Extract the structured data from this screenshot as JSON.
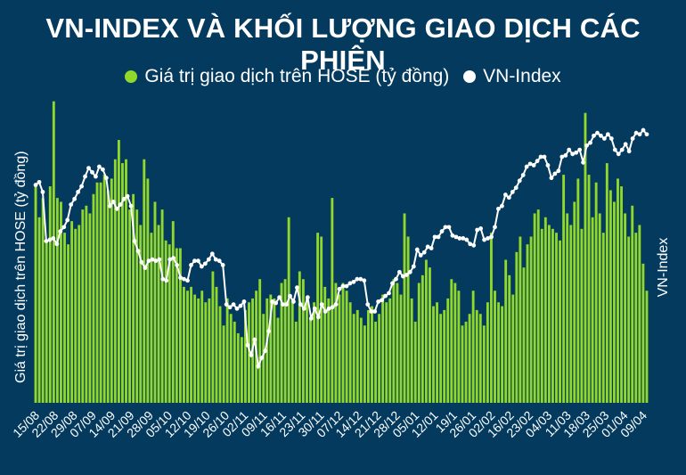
{
  "chart_data": {
    "type": "bar+line",
    "title": "VN-INDEX VÀ KHỐI LƯỢNG GIAO DỊCH CÁC PHIÊN",
    "legend_position": "top",
    "grid": false,
    "y_left_label": "Giá trị giao dịch trên HOSE (tỷ đồng)",
    "y_right_label": "VN-Index",
    "colors": {
      "bars": "#92d82a",
      "line": "#ffffff",
      "background": "#033a5e"
    },
    "x_tick_labels": [
      "15/08",
      "22/08",
      "29/08",
      "07/09",
      "14/09",
      "21/09",
      "28/09",
      "05/10",
      "12/10",
      "19/10",
      "26/10",
      "02/11",
      "09/11",
      "16/11",
      "23/11",
      "30/11",
      "07/12",
      "14/12",
      "21/12",
      "28/12",
      "05/01",
      "12/01",
      "19/1",
      "26/01",
      "02/02",
      "16/02",
      "23/02",
      "04/03",
      "11/03",
      "18/03",
      "25/03",
      "01/04",
      "09/04"
    ],
    "series": [
      {
        "name": "Giá trị giao dịch trên HOSE (tỷ đồng)",
        "kind": "bar",
        "values": [
          28000,
          24000,
          26500,
          21000,
          28000,
          39000,
          26500,
          26000,
          22000,
          20500,
          23500,
          22500,
          23000,
          25000,
          25500,
          24500,
          27000,
          28500,
          28500,
          29500,
          27500,
          29000,
          31500,
          34000,
          31000,
          31500,
          25000,
          27000,
          25000,
          23000,
          31500,
          29000,
          22000,
          26000,
          23000,
          25000,
          21000,
          20500,
          23500,
          20000,
          20000,
          15000,
          14500,
          15000,
          14000,
          13500,
          14500,
          13000,
          13500,
          17000,
          15000,
          12500,
          10000,
          13500,
          11500,
          10500,
          9000,
          8500,
          12000,
          13000,
          13500,
          14500,
          16000,
          11500,
          13500,
          14000,
          13500,
          11000,
          15500,
          16000,
          24000,
          13500,
          10500,
          17000,
          16000,
          13500,
          11000,
          13000,
          22000,
          21500,
          15000,
          13500,
          26500,
          15500,
          14000,
          15500,
          14500,
          13000,
          11500,
          12000,
          11000,
          10000,
          12000,
          12500,
          10500,
          11500,
          14000,
          13000,
          13500,
          16000,
          15500,
          14000,
          24500,
          21500,
          13500,
          10500,
          15500,
          16500,
          18500,
          17500,
          12500,
          13000,
          11500,
          12000,
          13500,
          16000,
          15500,
          14500,
          10000,
          10500,
          11500,
          14500,
          12000,
          11500,
          10000,
          13000,
          22000,
          14500,
          13000,
          12500,
          18500,
          16500,
          14000,
          19500,
          21500,
          17500,
          20500,
          21500,
          24500,
          25000,
          22500,
          24000,
          23000,
          22500,
          22000,
          21000,
          29500,
          24500,
          23000,
          26000,
          29000,
          22500,
          37500,
          29500,
          24000,
          28500,
          24500,
          22000,
          31000,
          27500,
          26000,
          29000,
          28000,
          24500,
          21500,
          25500,
          22000,
          23000,
          18000,
          14500
        ],
        "extra_values_note": ""
      },
      {
        "name": "VN-Index",
        "kind": "line",
        "values": [
          1335,
          1337,
          1330,
          1295,
          1296,
          1297,
          1293,
          1302,
          1305,
          1310,
          1321,
          1325,
          1330,
          1334,
          1341,
          1347,
          1344,
          1341,
          1348,
          1346,
          1340,
          1320,
          1323,
          1318,
          1321,
          1325,
          1327,
          1320,
          1295,
          1288,
          1280,
          1276,
          1281,
          1282,
          1281,
          1282,
          1268,
          1267,
          1282,
          1283,
          1278,
          1269,
          1268,
          1267,
          1278,
          1281,
          1281,
          1277,
          1279,
          1282,
          1286,
          1282,
          1281,
          1278,
          1250,
          1248,
          1250,
          1247,
          1249,
          1252,
          1221,
          1214,
          1225,
          1206,
          1212,
          1217,
          1231,
          1252,
          1251,
          1255,
          1250,
          1250,
          1256,
          1252,
          1262,
          1250,
          1247,
          1255,
          1240,
          1247,
          1241,
          1250,
          1245,
          1247,
          1248,
          1250,
          1261,
          1263,
          1263,
          1265,
          1266,
          1268,
          1268,
          1267,
          1250,
          1245,
          1245,
          1252,
          1253,
          1256,
          1258,
          1265,
          1268,
          1273,
          1270,
          1271,
          1273,
          1277,
          1289,
          1285,
          1287,
          1291,
          1290,
          1298,
          1298,
          1302,
          1305,
          1305,
          1299,
          1298,
          1297,
          1297,
          1296,
          1293,
          1292,
          1303,
          1304,
          1296,
          1297,
          1298,
          1305,
          1318,
          1320,
          1328,
          1326,
          1330,
          1333,
          1338,
          1342,
          1348,
          1350,
          1349,
          1352,
          1355,
          1355,
          1349,
          1340,
          1343,
          1345,
          1355,
          1356,
          1360,
          1357,
          1358,
          1360,
          1351,
          1363,
          1365,
          1370,
          1372,
          1370,
          1368,
          1371,
          1368,
          1360,
          1357,
          1360,
          1364,
          1359,
          1368,
          1372,
          1371,
          1374,
          1371
        ]
      }
    ],
    "y_left_range": [
      0,
      40000
    ],
    "y_right_range": [
      1180,
      1400
    ]
  }
}
